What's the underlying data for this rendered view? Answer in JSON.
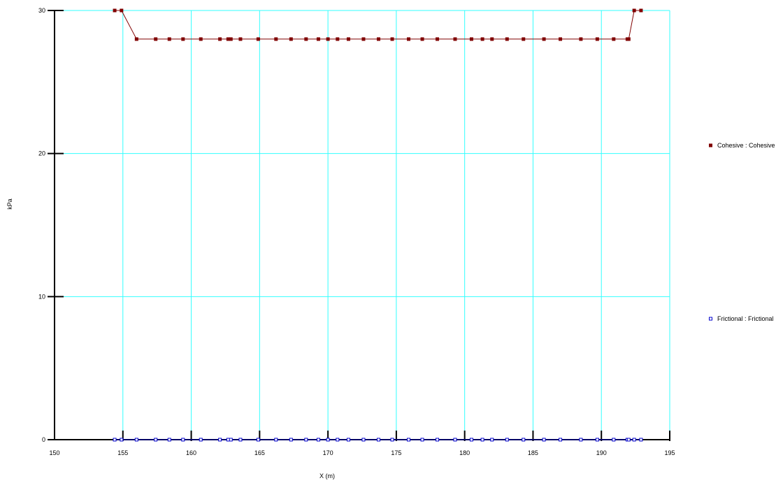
{
  "chart_data": {
    "type": "line",
    "xlabel": "X (m)",
    "ylabel": "kPa",
    "xlim": [
      150,
      195
    ],
    "ylim": [
      0,
      30
    ],
    "xticks": [
      "150",
      "155",
      "160",
      "165",
      "170",
      "175",
      "180",
      "185",
      "190",
      "195"
    ],
    "yticks": [
      "0",
      "10",
      "20",
      "30"
    ],
    "grid": true,
    "grid_color": "#33ffff",
    "legend_position": "right",
    "series": [
      {
        "name": "Cohesive : Cohesive",
        "color": "#800000",
        "marker": "filled-square",
        "x": [
          154.4,
          154.9,
          156.0,
          157.4,
          158.4,
          159.4,
          160.7,
          162.1,
          162.7,
          162.9,
          163.6,
          164.9,
          166.2,
          167.3,
          168.4,
          169.3,
          170.0,
          170.7,
          171.5,
          172.6,
          173.7,
          174.7,
          175.9,
          176.9,
          178.0,
          179.3,
          180.5,
          181.3,
          182.0,
          183.1,
          184.3,
          185.8,
          187.0,
          188.5,
          189.7,
          190.9,
          191.9,
          192.0,
          192.4,
          192.9
        ],
        "y": [
          30,
          30,
          28,
          28,
          28,
          28,
          28,
          28,
          28,
          28,
          28,
          28,
          28,
          28,
          28,
          28,
          28,
          28,
          28,
          28,
          28,
          28,
          28,
          28,
          28,
          28,
          28,
          28,
          28,
          28,
          28,
          28,
          28,
          28,
          28,
          28,
          28,
          28,
          30,
          30
        ]
      },
      {
        "name": "Frictional : Frictional",
        "color": "#0000cc",
        "marker": "open-square",
        "x": [
          154.4,
          154.9,
          156.0,
          157.4,
          158.4,
          159.4,
          160.7,
          162.1,
          162.7,
          162.9,
          163.6,
          164.9,
          166.2,
          167.3,
          168.4,
          169.3,
          170.0,
          170.7,
          171.5,
          172.6,
          173.7,
          174.7,
          175.9,
          176.9,
          178.0,
          179.3,
          180.5,
          181.3,
          182.0,
          183.1,
          184.3,
          185.8,
          187.0,
          188.5,
          189.7,
          190.9,
          191.9,
          192.0,
          192.4,
          192.9
        ],
        "y": [
          0,
          0,
          0,
          0,
          0,
          0,
          0,
          0,
          0,
          0,
          0,
          0,
          0,
          0,
          0,
          0,
          0,
          0,
          0,
          0,
          0,
          0,
          0,
          0,
          0,
          0,
          0,
          0,
          0,
          0,
          0,
          0,
          0,
          0,
          0,
          0,
          0,
          0,
          0,
          0
        ]
      }
    ]
  }
}
